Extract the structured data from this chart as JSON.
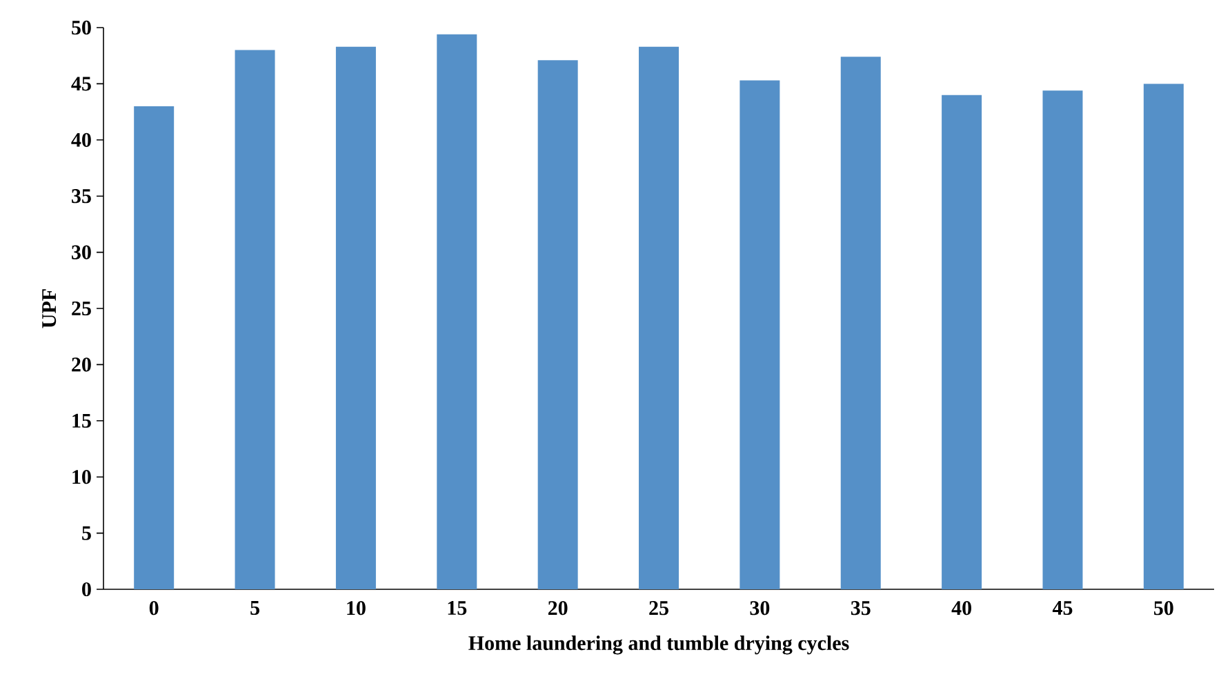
{
  "chart_data": {
    "type": "bar",
    "xlabel": "Home laundering and tumble drying cycles",
    "ylabel": "UPF",
    "categories": [
      "0",
      "5",
      "10",
      "15",
      "20",
      "25",
      "30",
      "35",
      "40",
      "45",
      "50"
    ],
    "values": [
      43.0,
      48.0,
      48.3,
      49.4,
      47.1,
      48.3,
      45.3,
      47.4,
      44.0,
      44.4,
      45.0
    ],
    "color": "#5590c8",
    "ylim": [
      0,
      50
    ],
    "yticks": [
      0,
      5,
      10,
      15,
      20,
      25,
      30,
      35,
      40,
      45,
      50
    ],
    "grid": false
  }
}
